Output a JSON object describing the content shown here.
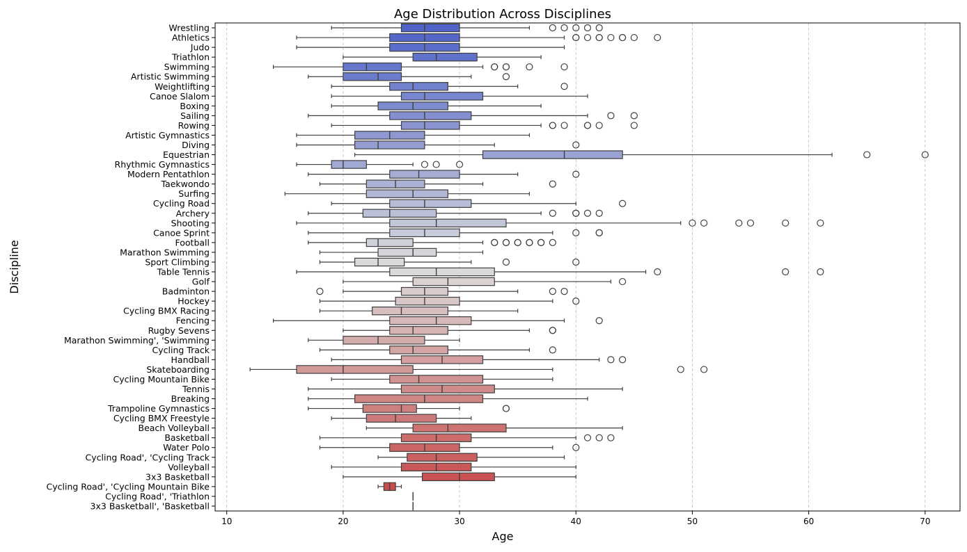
{
  "chart_data": {
    "type": "boxplot",
    "orientation": "horizontal",
    "title": "Age Distribution Across Disciplines",
    "xlabel": "Age",
    "ylabel": "Discipline",
    "xlim": [
      9,
      73
    ],
    "xticks": [
      10,
      20,
      30,
      40,
      50,
      60,
      70
    ],
    "grid": "x-dashed",
    "color_top": "#4f63c9",
    "color_mid": "#dcdcdc",
    "color_bottom": "#c5403f",
    "boxes": [
      {
        "label": "Wrestling",
        "whislo": 19,
        "q1": 25,
        "med": 27,
        "q3": 30,
        "whishi": 36,
        "fliers": [
          38,
          39,
          40,
          41,
          42
        ]
      },
      {
        "label": "Athletics",
        "whislo": 16,
        "q1": 24,
        "med": 27,
        "q3": 30,
        "whishi": 39,
        "fliers": [
          40,
          40,
          41,
          42,
          42,
          43,
          44,
          44,
          45,
          47
        ]
      },
      {
        "label": "Judo",
        "whislo": 16,
        "q1": 24,
        "med": 27,
        "q3": 30,
        "whishi": 39,
        "fliers": []
      },
      {
        "label": "Triathlon",
        "whislo": 20,
        "q1": 26,
        "med": 28,
        "q3": 31.5,
        "whishi": 37,
        "fliers": []
      },
      {
        "label": "Swimming",
        "whislo": 14,
        "q1": 20,
        "med": 22,
        "q3": 25,
        "whishi": 32,
        "fliers": [
          33,
          33,
          34,
          34,
          36,
          39
        ]
      },
      {
        "label": "Artistic Swimming",
        "whislo": 17,
        "q1": 20,
        "med": 23,
        "q3": 25,
        "whishi": 31,
        "fliers": [
          34
        ]
      },
      {
        "label": "Weightlifting",
        "whislo": 19,
        "q1": 24,
        "med": 26,
        "q3": 29,
        "whishi": 35,
        "fliers": [
          39
        ]
      },
      {
        "label": "Canoe Slalom",
        "whislo": 19,
        "q1": 25,
        "med": 27,
        "q3": 32,
        "whishi": 41,
        "fliers": []
      },
      {
        "label": "Boxing",
        "whislo": 19,
        "q1": 23,
        "med": 26,
        "q3": 29,
        "whishi": 37,
        "fliers": []
      },
      {
        "label": "Sailing",
        "whislo": 17,
        "q1": 24,
        "med": 27,
        "q3": 31,
        "whishi": 41,
        "fliers": [
          43,
          45
        ]
      },
      {
        "label": "Rowing",
        "whislo": 19,
        "q1": 25,
        "med": 27,
        "q3": 30,
        "whishi": 37,
        "fliers": [
          38,
          38,
          39,
          41,
          41,
          42,
          45
        ]
      },
      {
        "label": "Artistic Gymnastics",
        "whislo": 16,
        "q1": 21,
        "med": 24,
        "q3": 27,
        "whishi": 36,
        "fliers": []
      },
      {
        "label": "Diving",
        "whislo": 16,
        "q1": 21,
        "med": 23,
        "q3": 27,
        "whishi": 33,
        "fliers": [
          40
        ]
      },
      {
        "label": "Equestrian",
        "whislo": 21,
        "q1": 32,
        "med": 39,
        "q3": 44,
        "whishi": 62,
        "fliers": [
          65,
          70
        ]
      },
      {
        "label": "Rhythmic Gymnastics",
        "whislo": 16,
        "q1": 19,
        "med": 20,
        "q3": 22,
        "whishi": 26,
        "fliers": [
          27,
          28,
          30
        ]
      },
      {
        "label": "Modern Pentathlon",
        "whislo": 17,
        "q1": 24,
        "med": 26.5,
        "q3": 30,
        "whishi": 35,
        "fliers": [
          40
        ]
      },
      {
        "label": "Taekwondo",
        "whislo": 18,
        "q1": 22,
        "med": 24.5,
        "q3": 27,
        "whishi": 32,
        "fliers": [
          38
        ]
      },
      {
        "label": "Surfing",
        "whislo": 15,
        "q1": 22,
        "med": 26,
        "q3": 29,
        "whishi": 36,
        "fliers": []
      },
      {
        "label": "Cycling Road",
        "whislo": 19,
        "q1": 24,
        "med": 27,
        "q3": 31,
        "whishi": 40,
        "fliers": [
          44
        ]
      },
      {
        "label": "Archery",
        "whislo": 17,
        "q1": 21.7,
        "med": 24,
        "q3": 28,
        "whishi": 37,
        "fliers": [
          38,
          40,
          40,
          41,
          42
        ]
      },
      {
        "label": "Shooting",
        "whislo": 16,
        "q1": 24,
        "med": 28,
        "q3": 34,
        "whishi": 49,
        "fliers": [
          50,
          51,
          54,
          55,
          58,
          61
        ]
      },
      {
        "label": "Canoe Sprint",
        "whislo": 17,
        "q1": 24,
        "med": 27,
        "q3": 30,
        "whishi": 38,
        "fliers": [
          40,
          42,
          42
        ]
      },
      {
        "label": "Football",
        "whislo": 17,
        "q1": 22,
        "med": 23,
        "q3": 26,
        "whishi": 32,
        "fliers": [
          33,
          33,
          34,
          34,
          35,
          35,
          36,
          36,
          37,
          37,
          38
        ]
      },
      {
        "label": "Marathon Swimming",
        "whislo": 18,
        "q1": 23,
        "med": 26,
        "q3": 28,
        "whishi": 32,
        "fliers": []
      },
      {
        "label": "Sport Climbing",
        "whislo": 18,
        "q1": 21,
        "med": 23,
        "q3": 25.25,
        "whishi": 31,
        "fliers": [
          34,
          40
        ]
      },
      {
        "label": "Table Tennis",
        "whislo": 16,
        "q1": 24,
        "med": 28,
        "q3": 33,
        "whishi": 46,
        "fliers": [
          47,
          58,
          61
        ]
      },
      {
        "label": "Golf",
        "whislo": 20,
        "q1": 26,
        "med": 29,
        "q3": 33,
        "whishi": 43,
        "fliers": [
          44
        ]
      },
      {
        "label": "Badminton",
        "whislo": 20,
        "q1": 25,
        "med": 27,
        "q3": 29,
        "whishi": 35,
        "fliers": [
          18,
          38,
          39
        ]
      },
      {
        "label": "Hockey",
        "whislo": 18,
        "q1": 24.5,
        "med": 27,
        "q3": 30,
        "whishi": 38,
        "fliers": [
          40
        ]
      },
      {
        "label": "Cycling BMX Racing",
        "whislo": 18,
        "q1": 22.5,
        "med": 25,
        "q3": 29,
        "whishi": 35,
        "fliers": []
      },
      {
        "label": "Fencing",
        "whislo": 14,
        "q1": 24,
        "med": 28,
        "q3": 31,
        "whishi": 39,
        "fliers": [
          42
        ]
      },
      {
        "label": "Rugby Sevens",
        "whislo": 20,
        "q1": 24,
        "med": 26,
        "q3": 29,
        "whishi": 36,
        "fliers": [
          38,
          38
        ]
      },
      {
        "label": "Marathon Swimming', 'Swimming",
        "whislo": 17,
        "q1": 20,
        "med": 23,
        "q3": 27,
        "whishi": 30,
        "fliers": []
      },
      {
        "label": "Cycling Track",
        "whislo": 18,
        "q1": 24,
        "med": 26,
        "q3": 29,
        "whishi": 36,
        "fliers": [
          38
        ]
      },
      {
        "label": "Handball",
        "whislo": 19,
        "q1": 25,
        "med": 28.5,
        "q3": 32,
        "whishi": 42,
        "fliers": [
          43,
          44
        ]
      },
      {
        "label": "Skateboarding",
        "whislo": 12,
        "q1": 16,
        "med": 20,
        "q3": 26,
        "whishi": 38,
        "fliers": [
          49,
          51
        ]
      },
      {
        "label": "Cycling Mountain Bike",
        "whislo": 19,
        "q1": 24,
        "med": 26.5,
        "q3": 32,
        "whishi": 38,
        "fliers": []
      },
      {
        "label": "Tennis",
        "whislo": 17,
        "q1": 25,
        "med": 28.5,
        "q3": 33,
        "whishi": 44,
        "fliers": []
      },
      {
        "label": "Breaking",
        "whislo": 17,
        "q1": 21,
        "med": 27,
        "q3": 32,
        "whishi": 41,
        "fliers": []
      },
      {
        "label": "Trampoline Gymnastics",
        "whislo": 17,
        "q1": 21.7,
        "med": 25,
        "q3": 26.3,
        "whishi": 30,
        "fliers": [
          34,
          34
        ]
      },
      {
        "label": "Cycling BMX Freestyle",
        "whislo": 19,
        "q1": 22,
        "med": 24.5,
        "q3": 28,
        "whishi": 31,
        "fliers": []
      },
      {
        "label": "Beach Volleyball",
        "whislo": 22,
        "q1": 26,
        "med": 29,
        "q3": 34,
        "whishi": 44,
        "fliers": []
      },
      {
        "label": "Basketball",
        "whislo": 18,
        "q1": 25,
        "med": 28,
        "q3": 31,
        "whishi": 40,
        "fliers": [
          41,
          42,
          43
        ]
      },
      {
        "label": "Water Polo",
        "whislo": 18,
        "q1": 24,
        "med": 27,
        "q3": 30,
        "whishi": 38,
        "fliers": [
          40
        ]
      },
      {
        "label": "Cycling Road', 'Cycling Track",
        "whislo": 23,
        "q1": 25.5,
        "med": 28,
        "q3": 31.5,
        "whishi": 39,
        "fliers": []
      },
      {
        "label": "Volleyball",
        "whislo": 19,
        "q1": 25,
        "med": 28,
        "q3": 31,
        "whishi": 40,
        "fliers": []
      },
      {
        "label": "3x3 Basketball",
        "whislo": 20,
        "q1": 26.8,
        "med": 30,
        "q3": 33,
        "whishi": 40,
        "fliers": []
      },
      {
        "label": "Cycling Road', 'Cycling Mountain Bike",
        "whislo": 23,
        "q1": 23.5,
        "med": 24,
        "q3": 24.5,
        "whishi": 25,
        "fliers": []
      },
      {
        "label": "Cycling Road', 'Triathlon",
        "whislo": 26,
        "q1": 26,
        "med": 26,
        "q3": 26,
        "whishi": 26,
        "fliers": []
      },
      {
        "label": "3x3 Basketball', 'Basketball",
        "whislo": 26,
        "q1": 26,
        "med": 26,
        "q3": 26,
        "whishi": 26,
        "fliers": []
      }
    ]
  }
}
